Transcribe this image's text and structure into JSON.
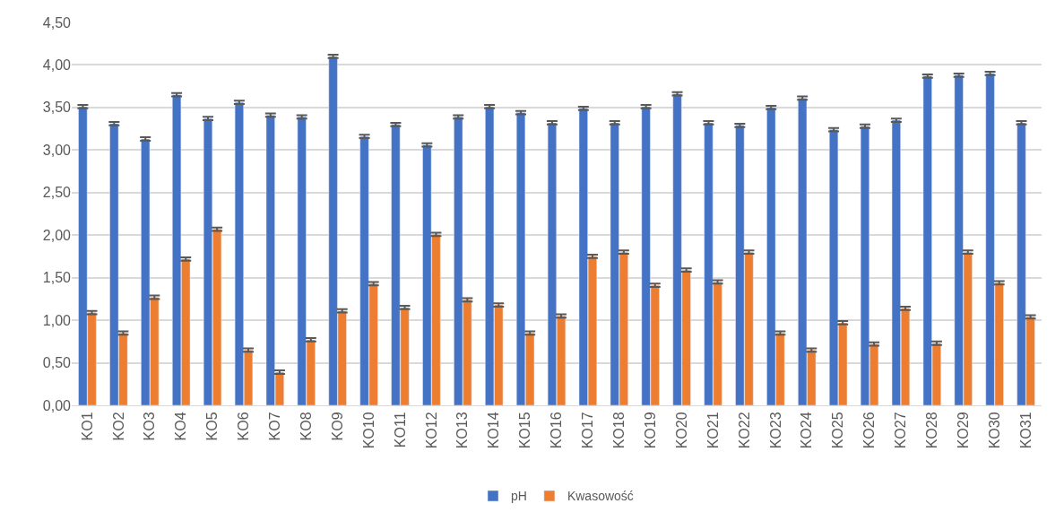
{
  "chart_data": {
    "type": "bar",
    "categories": [
      "KO1",
      "KO2",
      "KO3",
      "KO4",
      "KO5",
      "KO6",
      "KO7",
      "KO8",
      "KO9",
      "KO10",
      "KO11",
      "KO12",
      "KO13",
      "KO14",
      "KO15",
      "KO16",
      "KO17",
      "KO18",
      "KO19",
      "KO20",
      "KO21",
      "KO22",
      "KO23",
      "KO24",
      "KO25",
      "KO26",
      "KO27",
      "KO28",
      "KO29",
      "KO30",
      "KO31"
    ],
    "series": [
      {
        "name": "pH",
        "color": "#4472c4",
        "values": [
          3.51,
          3.31,
          3.13,
          3.65,
          3.37,
          3.56,
          3.41,
          3.39,
          4.1,
          3.16,
          3.3,
          3.06,
          3.39,
          3.51,
          3.44,
          3.32,
          3.49,
          3.32,
          3.51,
          3.66,
          3.32,
          3.29,
          3.5,
          3.61,
          3.24,
          3.28,
          3.35,
          3.87,
          3.88,
          3.9,
          3.32
        ],
        "errors": [
          0.02,
          0.02,
          0.02,
          0.02,
          0.02,
          0.02,
          0.02,
          0.02,
          0.02,
          0.02,
          0.02,
          0.02,
          0.02,
          0.02,
          0.02,
          0.02,
          0.02,
          0.02,
          0.02,
          0.02,
          0.02,
          0.02,
          0.02,
          0.02,
          0.02,
          0.02,
          0.02,
          0.02,
          0.02,
          0.02,
          0.02
        ]
      },
      {
        "name": "Kwasowość",
        "color": "#ed7d31",
        "values": [
          1.09,
          0.85,
          1.27,
          1.72,
          2.07,
          0.65,
          0.39,
          0.77,
          1.11,
          1.43,
          1.15,
          2.01,
          1.24,
          1.18,
          0.85,
          1.05,
          1.75,
          1.8,
          1.41,
          1.59,
          1.45,
          1.8,
          0.85,
          0.65,
          0.97,
          0.72,
          1.14,
          0.73,
          1.8,
          1.44,
          1.04
        ],
        "errors": [
          0.02,
          0.02,
          0.02,
          0.02,
          0.02,
          0.02,
          0.02,
          0.02,
          0.02,
          0.02,
          0.02,
          0.02,
          0.02,
          0.02,
          0.02,
          0.02,
          0.02,
          0.02,
          0.02,
          0.02,
          0.02,
          0.02,
          0.02,
          0.02,
          0.02,
          0.02,
          0.02,
          0.02,
          0.02,
          0.02,
          0.02
        ]
      }
    ],
    "ylim": [
      0,
      4.5
    ],
    "yticks": [
      {
        "value": 0,
        "label": "0,00"
      },
      {
        "value": 0.5,
        "label": "0,50"
      },
      {
        "value": 1,
        "label": "1,00"
      },
      {
        "value": 1.5,
        "label": "1,50"
      },
      {
        "value": 2,
        "label": "2,00"
      },
      {
        "value": 2.5,
        "label": "2,50"
      },
      {
        "value": 3,
        "label": "3,00"
      },
      {
        "value": 3.5,
        "label": "3,50"
      },
      {
        "value": 4,
        "label": "4,00"
      },
      {
        "value": 4.5,
        "label": "4,50"
      }
    ],
    "grid": "y",
    "legend": "bottom"
  }
}
